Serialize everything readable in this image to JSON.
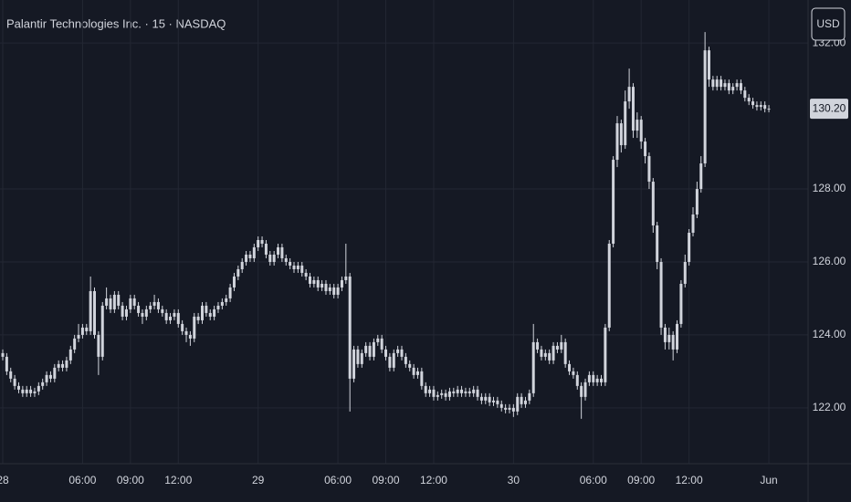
{
  "chart_data": {
    "type": "candlestick",
    "title": "Palantir Technologies Inc. · 15 · NASDAQ",
    "currency": "USD",
    "categories": [
      "28",
      null,
      null,
      null,
      null,
      null,
      null,
      null,
      null,
      null,
      null,
      null,
      null,
      null,
      null,
      null,
      null,
      null,
      null,
      null,
      "06:00",
      null,
      null,
      null,
      null,
      null,
      null,
      null,
      null,
      null,
      null,
      null,
      "09:00",
      null,
      null,
      null,
      null,
      null,
      null,
      null,
      null,
      null,
      null,
      null,
      "12:00",
      null,
      null,
      null,
      null,
      null,
      null,
      null,
      null,
      null,
      null,
      null,
      null,
      null,
      null,
      null,
      null,
      null,
      null,
      null,
      "29",
      null,
      null,
      null,
      null,
      null,
      null,
      null,
      null,
      null,
      null,
      null,
      null,
      null,
      null,
      null,
      null,
      null,
      null,
      null,
      "06:00",
      null,
      null,
      null,
      null,
      null,
      null,
      null,
      null,
      null,
      null,
      null,
      "09:00",
      null,
      null,
      null,
      null,
      null,
      null,
      null,
      null,
      null,
      null,
      null,
      "12:00",
      null,
      null,
      null,
      null,
      null,
      null,
      null,
      null,
      null,
      null,
      null,
      null,
      null,
      null,
      null,
      null,
      null,
      null,
      null,
      "30",
      null,
      null,
      null,
      null,
      null,
      null,
      null,
      null,
      null,
      null,
      null,
      null,
      null,
      null,
      null,
      null,
      null,
      null,
      null,
      "06:00",
      null,
      null,
      null,
      null,
      null,
      null,
      null,
      null,
      null,
      null,
      null,
      "09:00",
      null,
      null,
      null,
      null,
      null,
      null,
      null,
      null,
      null,
      null,
      null,
      "12:00",
      null,
      null,
      null,
      null,
      null,
      null,
      null,
      null,
      null,
      null,
      null,
      null,
      null,
      null,
      null,
      null,
      null,
      null,
      null,
      "Jun"
    ],
    "open": [
      123.5,
      123.4,
      123.0,
      122.8,
      122.6,
      122.5,
      122.4,
      122.5,
      122.4,
      122.45,
      122.6,
      122.7,
      122.9,
      122.8,
      123.1,
      123.2,
      123.1,
      123.3,
      123.6,
      123.9,
      124.0,
      124.2,
      124.1,
      125.2,
      124.0,
      123.4,
      124.8,
      125.0,
      124.7,
      125.1,
      124.8,
      124.5,
      124.7,
      125.0,
      124.8,
      124.6,
      124.5,
      124.7,
      124.8,
      124.9,
      124.7,
      124.6,
      124.4,
      124.5,
      124.6,
      124.3,
      124.1,
      124.0,
      123.9,
      124.5,
      124.4,
      124.8,
      124.6,
      124.5,
      124.7,
      124.8,
      124.9,
      125.0,
      125.3,
      125.6,
      125.8,
      126.0,
      126.2,
      126.1,
      126.4,
      126.6,
      126.5,
      126.2,
      126.0,
      126.2,
      126.4,
      126.1,
      126.0,
      125.9,
      125.8,
      125.9,
      125.7,
      125.6,
      125.4,
      125.5,
      125.3,
      125.4,
      125.2,
      125.3,
      125.1,
      125.3,
      125.5,
      125.6,
      122.8,
      123.6,
      123.2,
      123.5,
      123.7,
      123.4,
      123.8,
      123.9,
      123.6,
      123.4,
      123.1,
      123.5,
      123.6,
      123.4,
      123.2,
      123.1,
      122.9,
      123.0,
      122.6,
      122.4,
      122.5,
      122.3,
      122.35,
      122.4,
      122.3,
      122.45,
      122.4,
      122.5,
      122.4,
      122.45,
      122.4,
      122.5,
      122.3,
      122.2,
      122.3,
      122.15,
      122.2,
      122.1,
      122.0,
      121.95,
      122.0,
      121.9,
      122.3,
      122.1,
      122.2,
      122.4,
      123.8,
      123.6,
      123.4,
      123.5,
      123.3,
      123.7,
      123.6,
      123.8,
      123.2,
      123.0,
      122.9,
      122.6,
      122.3,
      122.7,
      122.9,
      122.7,
      122.8,
      122.7,
      124.2,
      126.5,
      128.8,
      129.8,
      129.2,
      130.4,
      130.8,
      129.6,
      129.9,
      129.3,
      128.9,
      128.2,
      127.0,
      126.0,
      124.2,
      123.8,
      124.0,
      123.6,
      124.3,
      125.4,
      126.0,
      126.8,
      127.3,
      128.0,
      128.7,
      131.8,
      131.0,
      130.8,
      131.0,
      130.8,
      130.9,
      130.7,
      130.8,
      130.9,
      130.7,
      130.5,
      130.4,
      130.3,
      130.25,
      130.3,
      130.2
    ],
    "high": [
      123.6,
      123.5,
      123.1,
      122.9,
      122.7,
      122.6,
      122.6,
      122.6,
      122.55,
      122.7,
      122.8,
      123.0,
      123.0,
      123.2,
      123.3,
      123.3,
      123.4,
      123.7,
      124.0,
      124.3,
      124.3,
      124.3,
      125.6,
      125.3,
      124.1,
      124.9,
      125.3,
      125.1,
      125.2,
      125.2,
      124.9,
      124.8,
      125.1,
      125.1,
      124.9,
      124.7,
      124.8,
      124.9,
      125.1,
      125.0,
      124.8,
      124.7,
      124.6,
      124.7,
      124.7,
      124.4,
      124.2,
      124.1,
      124.6,
      124.6,
      124.9,
      124.9,
      124.7,
      124.8,
      124.9,
      125.0,
      125.1,
      125.4,
      125.7,
      125.9,
      126.1,
      126.3,
      126.3,
      126.5,
      126.7,
      126.7,
      126.6,
      126.3,
      126.3,
      126.5,
      126.5,
      126.2,
      126.1,
      126.0,
      126.0,
      126.0,
      125.8,
      125.7,
      125.6,
      125.6,
      125.5,
      125.5,
      125.4,
      125.4,
      125.4,
      125.6,
      126.5,
      125.7,
      123.7,
      123.7,
      123.6,
      123.8,
      123.8,
      123.9,
      124.0,
      124.0,
      123.7,
      123.5,
      123.6,
      123.7,
      123.7,
      123.5,
      123.3,
      123.2,
      123.1,
      123.1,
      122.7,
      122.6,
      122.6,
      122.45,
      122.5,
      122.5,
      122.55,
      122.55,
      122.6,
      122.6,
      122.55,
      122.55,
      122.6,
      122.6,
      122.4,
      122.4,
      122.4,
      122.3,
      122.3,
      122.2,
      122.1,
      122.1,
      122.1,
      122.4,
      122.4,
      122.3,
      122.5,
      124.3,
      123.9,
      123.7,
      123.6,
      123.6,
      123.8,
      123.8,
      124.0,
      123.9,
      123.3,
      123.1,
      123.0,
      122.7,
      122.8,
      123.0,
      123.0,
      122.9,
      122.9,
      124.3,
      126.6,
      128.9,
      130.0,
      129.9,
      130.7,
      131.3,
      130.9,
      130.1,
      130.0,
      129.4,
      129.0,
      128.3,
      127.1,
      126.1,
      124.3,
      124.2,
      124.1,
      124.4,
      125.5,
      126.2,
      126.9,
      127.5,
      128.2,
      128.9,
      132.3,
      131.9,
      131.1,
      131.1,
      131.1,
      131.0,
      131.0,
      130.9,
      131.0,
      131.0,
      130.8,
      130.6,
      130.5,
      130.4,
      130.4,
      130.4,
      130.3
    ],
    "low": [
      123.3,
      122.9,
      122.7,
      122.5,
      122.4,
      122.3,
      122.3,
      122.3,
      122.3,
      122.35,
      122.5,
      122.6,
      122.7,
      122.7,
      123.0,
      123.0,
      123.0,
      123.2,
      123.5,
      123.8,
      123.9,
      124.0,
      124.0,
      123.9,
      122.9,
      123.3,
      124.7,
      124.6,
      124.6,
      124.7,
      124.4,
      124.4,
      124.6,
      124.7,
      124.5,
      124.3,
      124.4,
      124.6,
      124.7,
      124.6,
      124.5,
      124.3,
      124.3,
      124.4,
      124.2,
      124.0,
      123.8,
      123.7,
      123.8,
      124.3,
      124.3,
      124.5,
      124.4,
      124.4,
      124.6,
      124.7,
      124.8,
      124.9,
      125.2,
      125.5,
      125.7,
      125.9,
      126.0,
      126.0,
      126.3,
      126.4,
      126.1,
      125.9,
      125.9,
      126.1,
      126.0,
      125.9,
      125.8,
      125.7,
      125.7,
      125.6,
      125.5,
      125.3,
      125.3,
      125.2,
      125.2,
      125.1,
      125.1,
      125.0,
      125.0,
      125.2,
      125.4,
      121.9,
      122.7,
      123.1,
      123.1,
      123.4,
      123.3,
      123.3,
      123.7,
      123.5,
      123.3,
      123.0,
      123.0,
      123.4,
      123.3,
      123.1,
      123.0,
      122.8,
      122.8,
      122.5,
      122.3,
      122.3,
      122.2,
      122.2,
      122.25,
      122.2,
      122.2,
      122.3,
      122.3,
      122.3,
      122.3,
      122.3,
      122.3,
      122.2,
      122.1,
      122.1,
      122.05,
      122.05,
      122.0,
      121.9,
      121.85,
      121.85,
      121.75,
      121.8,
      122.0,
      122.0,
      122.1,
      122.3,
      123.5,
      123.3,
      123.3,
      123.2,
      123.2,
      123.5,
      123.5,
      123.1,
      122.9,
      122.8,
      122.5,
      121.7,
      122.2,
      122.6,
      122.6,
      122.6,
      122.6,
      122.6,
      124.1,
      126.4,
      128.6,
      129.0,
      129.1,
      130.2,
      129.4,
      129.4,
      129.1,
      128.7,
      128.0,
      126.8,
      125.8,
      124.0,
      123.6,
      123.6,
      123.3,
      123.5,
      124.2,
      125.3,
      125.9,
      126.7,
      127.2,
      127.9,
      128.6,
      130.8,
      130.7,
      130.7,
      130.7,
      130.7,
      130.6,
      130.6,
      130.7,
      130.6,
      130.4,
      130.3,
      130.2,
      130.15,
      130.15,
      130.1,
      130.1
    ],
    "close": [
      123.4,
      123.0,
      122.8,
      122.6,
      122.5,
      122.4,
      122.5,
      122.4,
      122.45,
      122.6,
      122.7,
      122.9,
      122.8,
      123.1,
      123.2,
      123.1,
      123.3,
      123.6,
      123.9,
      124.0,
      124.2,
      124.1,
      125.2,
      124.0,
      123.4,
      124.8,
      125.0,
      124.7,
      125.1,
      124.8,
      124.5,
      124.7,
      125.0,
      124.8,
      124.6,
      124.5,
      124.7,
      124.8,
      124.9,
      124.7,
      124.6,
      124.4,
      124.5,
      124.6,
      124.3,
      124.1,
      124.0,
      123.9,
      124.5,
      124.4,
      124.8,
      124.6,
      124.5,
      124.7,
      124.8,
      124.9,
      125.0,
      125.3,
      125.6,
      125.8,
      126.0,
      126.2,
      126.1,
      126.4,
      126.6,
      126.5,
      126.2,
      126.0,
      126.2,
      126.4,
      126.1,
      126.0,
      125.9,
      125.8,
      125.9,
      125.7,
      125.6,
      125.4,
      125.5,
      125.3,
      125.4,
      125.2,
      125.3,
      125.1,
      125.3,
      125.5,
      125.6,
      122.8,
      123.6,
      123.2,
      123.5,
      123.7,
      123.4,
      123.8,
      123.9,
      123.6,
      123.4,
      123.1,
      123.5,
      123.6,
      123.4,
      123.2,
      123.1,
      122.9,
      123.0,
      122.6,
      122.4,
      122.5,
      122.3,
      122.35,
      122.4,
      122.3,
      122.45,
      122.4,
      122.5,
      122.4,
      122.45,
      122.4,
      122.5,
      122.3,
      122.2,
      122.3,
      122.15,
      122.2,
      122.1,
      122.0,
      121.95,
      122.0,
      121.9,
      122.3,
      122.1,
      122.2,
      122.4,
      123.8,
      123.6,
      123.4,
      123.5,
      123.3,
      123.7,
      123.6,
      123.8,
      123.2,
      123.0,
      122.9,
      122.6,
      122.3,
      122.7,
      122.9,
      122.7,
      122.8,
      122.7,
      124.2,
      126.5,
      128.8,
      129.8,
      129.2,
      130.4,
      130.8,
      129.6,
      129.9,
      129.3,
      128.9,
      128.2,
      127.0,
      126.0,
      124.2,
      123.8,
      124.0,
      123.6,
      124.3,
      125.4,
      126.0,
      126.8,
      127.3,
      128.0,
      128.7,
      131.8,
      131.0,
      130.8,
      131.0,
      130.8,
      130.9,
      130.7,
      130.8,
      130.9,
      130.7,
      130.5,
      130.4,
      130.3,
      130.25,
      130.3,
      130.2,
      130.2
    ],
    "last_price": {
      "value": 130.2,
      "label": "130.20"
    },
    "ylim": [
      120.47,
      133.18
    ],
    "yticks": [
      {
        "value": 122,
        "label": "122.00"
      },
      {
        "value": 124,
        "label": "124.00"
      },
      {
        "value": 126,
        "label": "126.00"
      },
      {
        "value": 128,
        "label": "128.00"
      },
      {
        "value": 132,
        "label": "132.00"
      }
    ],
    "up_color": "#d1d4dc",
    "down_color": "#d1d4dc",
    "grid": true
  }
}
